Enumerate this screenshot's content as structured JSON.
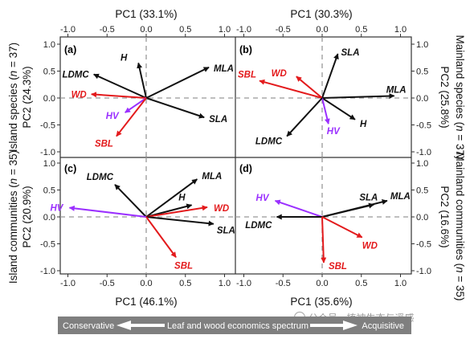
{
  "colors": {
    "black": "#111111",
    "red": "#e31a1c",
    "purple": "#9b30ff",
    "dashed": "#999999",
    "bar_bg": "#7f7f7f"
  },
  "titles": {
    "top_left": "PC1 (33.1%)",
    "top_right": "PC1 (30.3%)",
    "bottom_left": "PC1 (46.1%)",
    "bottom_right": "PC1 (35.6%)",
    "left_top_a": "Island species (",
    "left_top_b": "n",
    "left_top_c": " = 37)",
    "left_top_2": "PC2 (24.3%)",
    "left_bottom_a": "Island communities (",
    "left_bottom_b": "n",
    "left_bottom_c": " = 35)",
    "left_bottom_2": "PC2 (20.9%)",
    "right_top_a": "Mainland species (",
    "right_top_b": "n",
    "right_top_c": " = 37)",
    "right_top_2": "PC2 (25.8%)",
    "right_bottom_a": "Mainland communities (",
    "right_bottom_b": "n",
    "right_bottom_c": " = 35)",
    "right_bottom_2": "PC2 (16.6%)"
  },
  "bar": {
    "left": "Conservative",
    "center": "Leaf and wood economics spectrum",
    "right": "Acquisitive"
  },
  "watermark": "公众号 · 植被生态与遥感",
  "chart_data": [
    {
      "type": "scatter",
      "subtype": "pca-biplot",
      "panel": "(a)",
      "xlim": [
        -1.0,
        1.0
      ],
      "ylim": [
        -1.0,
        1.0
      ],
      "vectors": [
        {
          "label": "H",
          "x": -0.1,
          "y": 0.65,
          "color": "black"
        },
        {
          "label": "MLA",
          "x": 0.8,
          "y": 0.57,
          "color": "black"
        },
        {
          "label": "LDMC",
          "x": -0.67,
          "y": 0.44,
          "color": "black"
        },
        {
          "label": "WD",
          "x": -0.7,
          "y": 0.07,
          "color": "red"
        },
        {
          "label": "SLA",
          "x": 0.74,
          "y": -0.36,
          "color": "black"
        },
        {
          "label": "HV",
          "x": -0.27,
          "y": -0.27,
          "color": "purple"
        },
        {
          "label": "SBL",
          "x": -0.38,
          "y": -0.71,
          "color": "red"
        }
      ]
    },
    {
      "type": "scatter",
      "subtype": "pca-biplot",
      "panel": "(b)",
      "xlim": [
        -1.0,
        1.0
      ],
      "ylim": [
        -1.0,
        1.0
      ],
      "vectors": [
        {
          "label": "SLA",
          "x": 0.2,
          "y": 0.82,
          "color": "black"
        },
        {
          "label": "WD",
          "x": -0.33,
          "y": 0.4,
          "color": "red"
        },
        {
          "label": "SBL",
          "x": -0.8,
          "y": 0.32,
          "color": "red"
        },
        {
          "label": "MLA",
          "x": 0.92,
          "y": 0.04,
          "color": "black"
        },
        {
          "label": "H",
          "x": 0.42,
          "y": -0.4,
          "color": "black"
        },
        {
          "label": "HV",
          "x": 0.08,
          "y": -0.48,
          "color": "purple"
        },
        {
          "label": "LDMC",
          "x": -0.45,
          "y": -0.71,
          "color": "black"
        }
      ]
    },
    {
      "type": "scatter",
      "subtype": "pca-biplot",
      "panel": "(c)",
      "xlim": [
        -1.0,
        1.0
      ],
      "ylim": [
        -1.0,
        1.0
      ],
      "vectors": [
        {
          "label": "LDMC",
          "x": -0.4,
          "y": 0.6,
          "color": "black"
        },
        {
          "label": "MLA",
          "x": 0.65,
          "y": 0.7,
          "color": "black"
        },
        {
          "label": "H",
          "x": 0.58,
          "y": 0.22,
          "color": "black"
        },
        {
          "label": "WD",
          "x": 0.78,
          "y": 0.18,
          "color": "red"
        },
        {
          "label": "HV",
          "x": -0.98,
          "y": 0.17,
          "color": "purple"
        },
        {
          "label": "SLA",
          "x": 0.86,
          "y": -0.13,
          "color": "black"
        },
        {
          "label": "SBL",
          "x": 0.38,
          "y": -0.75,
          "color": "red"
        }
      ]
    },
    {
      "type": "scatter",
      "subtype": "pca-biplot",
      "panel": "(d)",
      "xlim": [
        -1.0,
        1.0
      ],
      "ylim": [
        -1.0,
        1.0
      ],
      "vectors": [
        {
          "label": "HV",
          "x": -0.6,
          "y": 0.3,
          "color": "purple"
        },
        {
          "label": "SLA",
          "x": 0.66,
          "y": 0.23,
          "color": "black"
        },
        {
          "label": "MLA",
          "x": 0.83,
          "y": 0.3,
          "color": "black"
        },
        {
          "label": "LDMC",
          "x": -0.58,
          "y": 0.0,
          "color": "black"
        },
        {
          "label": "WD",
          "x": 0.51,
          "y": -0.38,
          "color": "red"
        },
        {
          "label": "SBL",
          "x": 0.02,
          "y": -0.85,
          "color": "red"
        }
      ]
    }
  ]
}
